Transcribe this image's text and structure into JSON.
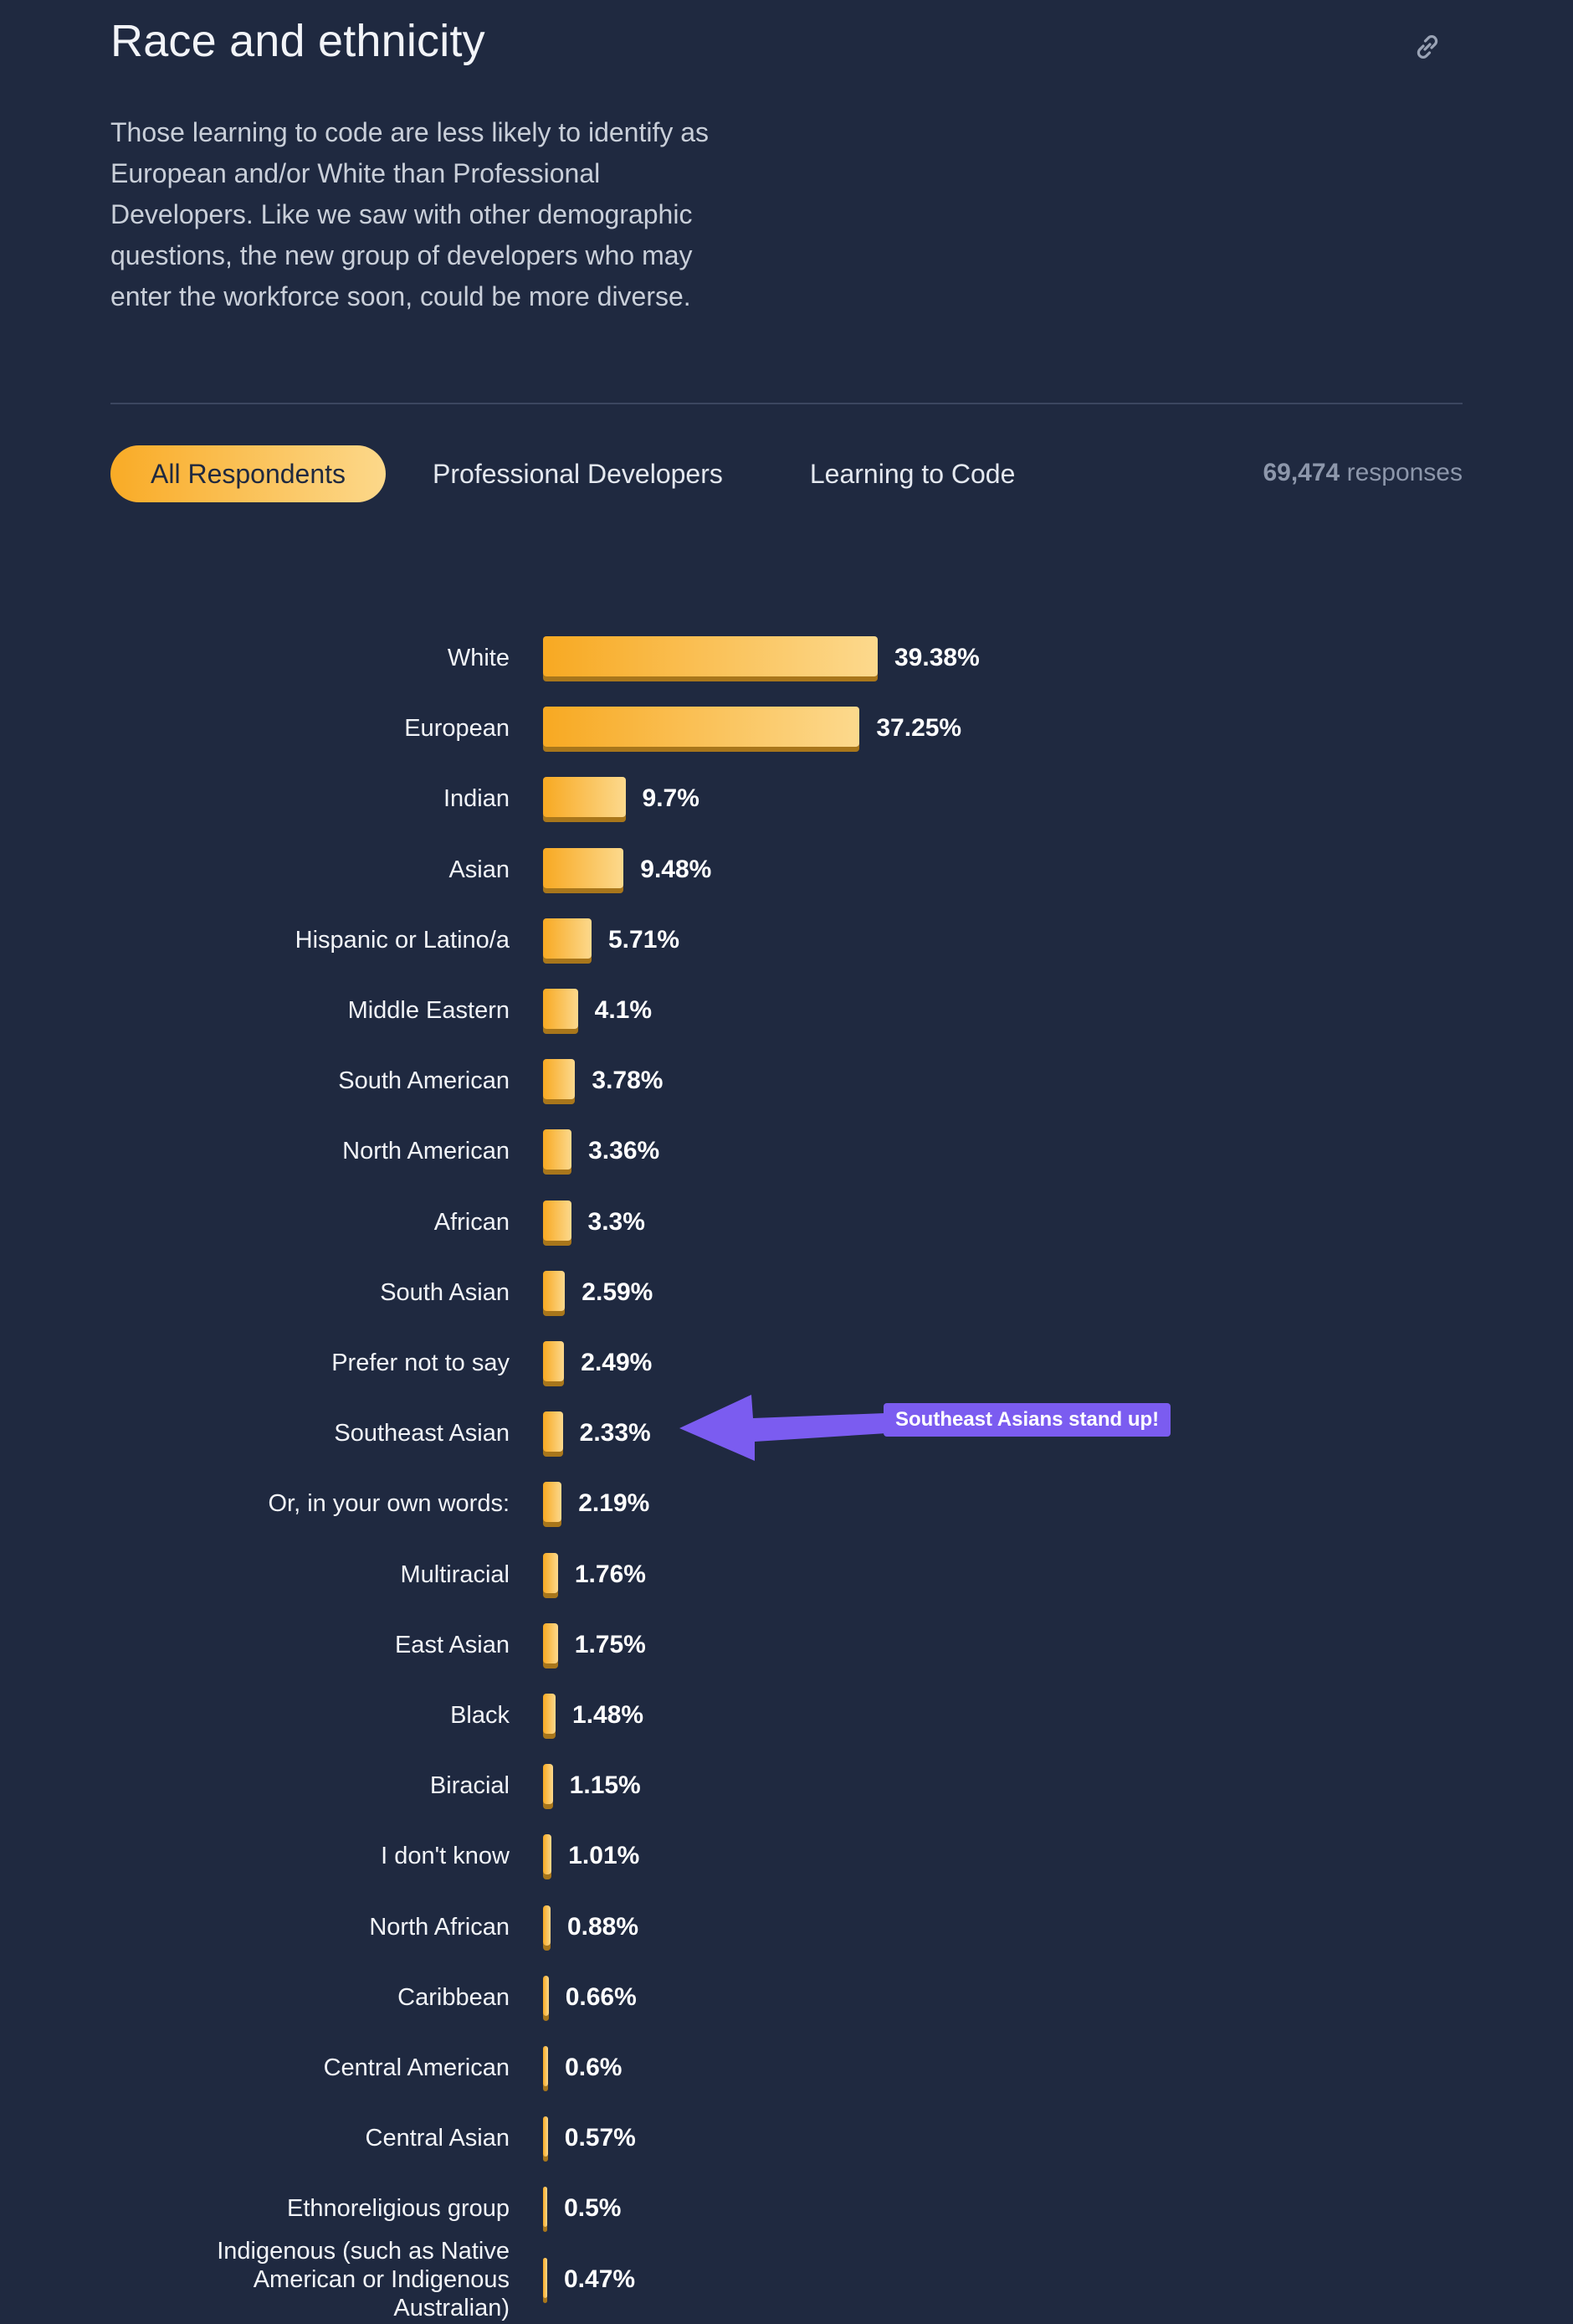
{
  "section": {
    "title": "Race and ethnicity",
    "description": "Those learning to code are less likely to identify as European and/or White than Professional Developers. Like we saw with other demographic questions, the new group of developers who may enter the workforce soon, could be more diverse."
  },
  "tabs": [
    {
      "label": "All Respondents",
      "active": true
    },
    {
      "label": "Professional Developers",
      "active": false
    },
    {
      "label": "Learning to Code",
      "active": false
    }
  ],
  "responses": {
    "count": "69,474",
    "label": "responses"
  },
  "annotation": {
    "text": "Southeast Asians stand up!",
    "target": "Southeast Asian",
    "color": "#7b5cf0"
  },
  "colors": {
    "background": "#1f2940",
    "bar_start": "#f8a922",
    "bar_end": "#fcd98d"
  },
  "icons": {
    "permalink": "link-icon"
  },
  "chart_data": {
    "type": "bar",
    "orientation": "horizontal",
    "categories": [
      "White",
      "European",
      "Indian",
      "Asian",
      "Hispanic or Latino/a",
      "Middle Eastern",
      "South American",
      "North American",
      "African",
      "South Asian",
      "Prefer not to say",
      "Southeast Asian",
      "Or, in your own words:",
      "Multiracial",
      "East Asian",
      "Black",
      "Biracial",
      "I don't know",
      "North African",
      "Caribbean",
      "Central American",
      "Central Asian",
      "Ethnoreligious group",
      "Indigenous (such as Native American or Indigenous Australian)"
    ],
    "values": [
      39.38,
      37.25,
      9.7,
      9.48,
      5.71,
      4.1,
      3.78,
      3.36,
      3.3,
      2.59,
      2.49,
      2.33,
      2.19,
      1.76,
      1.75,
      1.48,
      1.15,
      1.01,
      0.88,
      0.66,
      0.6,
      0.57,
      0.5,
      0.47
    ],
    "value_labels": [
      "39.38%",
      "37.25%",
      "9.7%",
      "9.48%",
      "5.71%",
      "4.1%",
      "3.78%",
      "3.36%",
      "3.3%",
      "2.59%",
      "2.49%",
      "2.33%",
      "2.19%",
      "1.76%",
      "1.75%",
      "1.48%",
      "1.15%",
      "1.01%",
      "0.88%",
      "0.66%",
      "0.6%",
      "0.57%",
      "0.5%",
      "0.47%"
    ],
    "unit": "%",
    "grid": false,
    "legend": "none"
  }
}
